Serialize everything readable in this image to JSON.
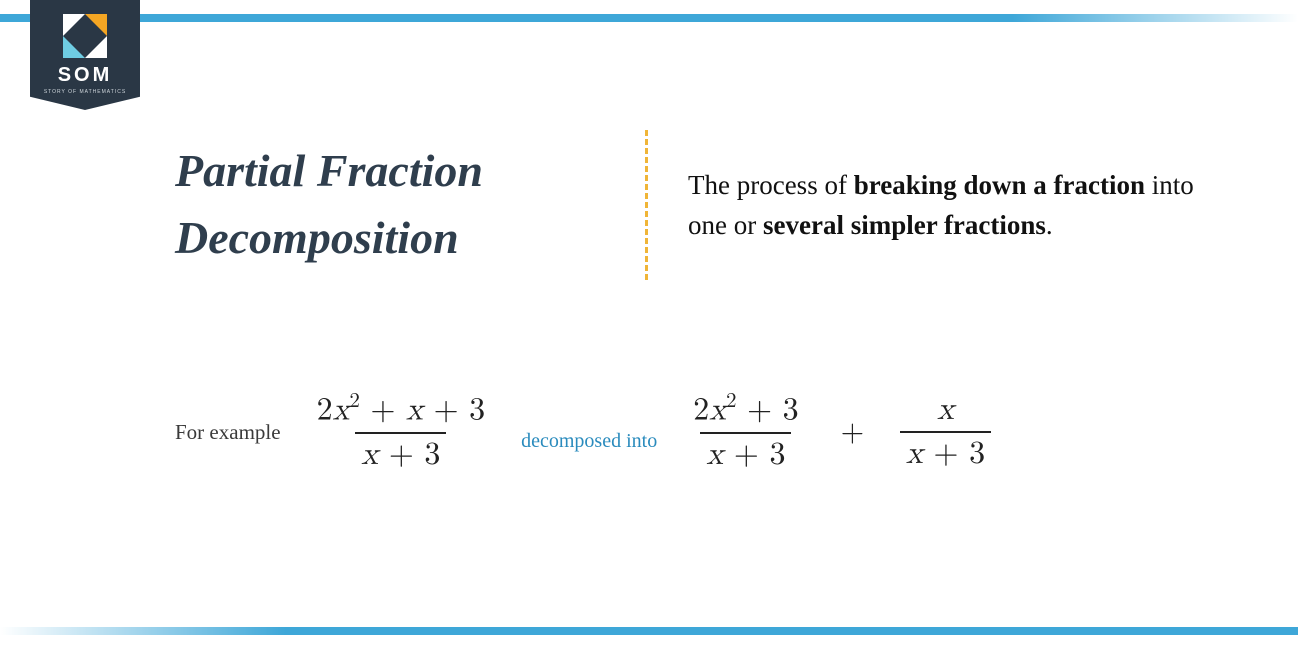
{
  "colors": {
    "accent_bar": "#3ea7d8",
    "badge_bg": "#2a3745",
    "title_color": "#2f3e4d",
    "divider_color": "#f0b537",
    "link_color": "#2a8bbd",
    "text_color": "#111111",
    "math_color": "#222222",
    "logo_orange": "#f5a623",
    "logo_cyan": "#6fcde3"
  },
  "logo": {
    "text": "SOM",
    "subtext": "STORY OF MATHEMATICS"
  },
  "title": {
    "line1": "Partial Fraction",
    "line2": "Decomposition",
    "fontsize": 46,
    "font_style": "italic bold"
  },
  "definition": {
    "pre": "The process of ",
    "bold1": "breaking down a fraction",
    "mid": " into one or ",
    "bold2": "several simpler fractions",
    "post": ".",
    "fontsize": 27
  },
  "example": {
    "label": "For example",
    "link_text": "decomposed into",
    "plus": "+",
    "source": {
      "numerator": "2x² + x + 3",
      "denominator": "x + 3"
    },
    "term1": {
      "numerator": "2x² + 3",
      "denominator": "x + 3"
    },
    "term2": {
      "numerator": "x",
      "denominator": "x + 3"
    },
    "math_fontsize": 32
  }
}
